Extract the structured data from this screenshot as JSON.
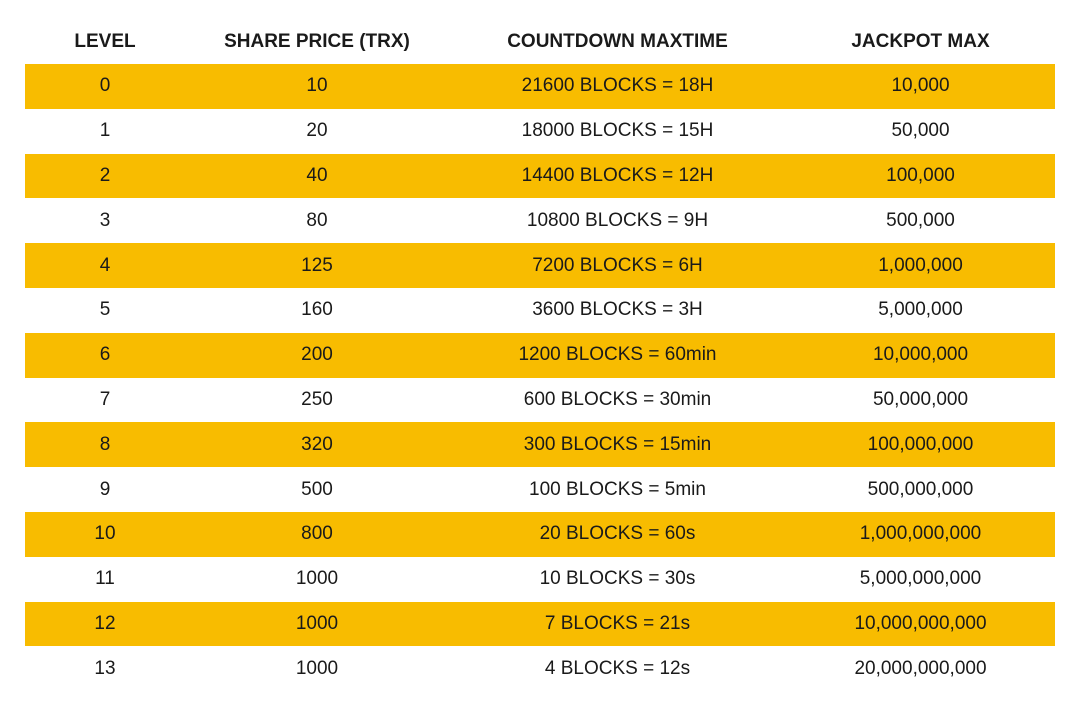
{
  "table": {
    "headers": [
      "LEVEL",
      "SHARE PRICE (TRX)",
      "COUNTDOWN MAXTIME",
      "JACKPOT MAX"
    ],
    "highlight_color": "#f8bc00",
    "rows": [
      [
        "0",
        "10",
        "21600 BLOCKS = 18H",
        "10,000"
      ],
      [
        "1",
        "20",
        "18000 BLOCKS = 15H",
        "50,000"
      ],
      [
        "2",
        "40",
        "14400 BLOCKS = 12H",
        "100,000"
      ],
      [
        "3",
        "80",
        "10800 BLOCKS = 9H",
        "500,000"
      ],
      [
        "4",
        "125",
        "7200 BLOCKS = 6H",
        "1,000,000"
      ],
      [
        "5",
        "160",
        "3600 BLOCKS = 3H",
        "5,000,000"
      ],
      [
        "6",
        "200",
        "1200 BLOCKS = 60min",
        "10,000,000"
      ],
      [
        "7",
        "250",
        "600 BLOCKS = 30min",
        "50,000,000"
      ],
      [
        "8",
        "320",
        "300 BLOCKS = 15min",
        "100,000,000"
      ],
      [
        "9",
        "500",
        "100 BLOCKS = 5min",
        "500,000,000"
      ],
      [
        "10",
        "800",
        "20 BLOCKS = 60s",
        "1,000,000,000"
      ],
      [
        "11",
        "1000",
        "10 BLOCKS = 30s",
        "5,000,000,000"
      ],
      [
        "12",
        "1000",
        "7 BLOCKS = 21s",
        "10,000,000,000"
      ],
      [
        "13",
        "1000",
        "4 BLOCKS = 12s",
        "20,000,000,000"
      ]
    ]
  }
}
